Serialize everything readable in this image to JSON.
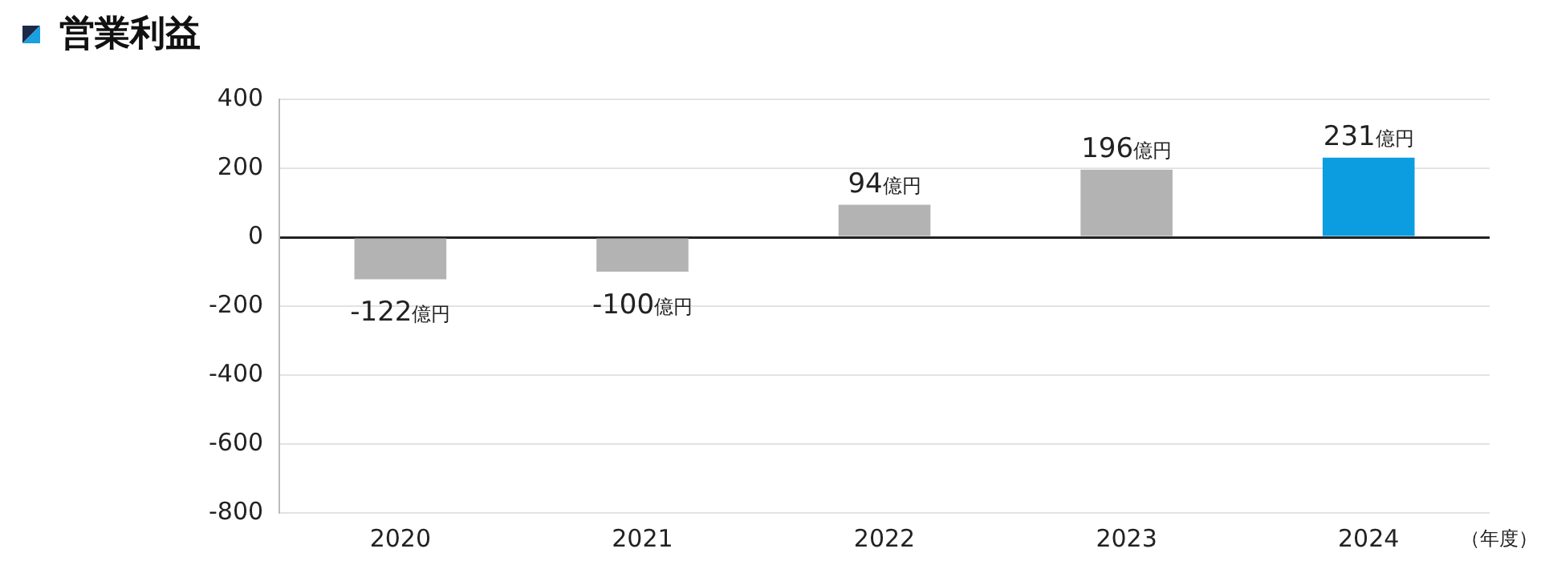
{
  "chart_data": {
    "type": "bar",
    "title": "営業利益",
    "xlabel": "（年度）",
    "categories": [
      "2020",
      "2021",
      "2022",
      "2023",
      "2024"
    ],
    "values": [
      -122,
      -100,
      94,
      196,
      231
    ],
    "colors": [
      "#b3b3b3",
      "#b3b3b3",
      "#b3b3b3",
      "#b3b3b3",
      "#0b9de0"
    ],
    "value_labels": [
      "-122億円",
      "-100億円",
      "94億円",
      "196億円",
      "231億円"
    ],
    "ylim": [
      -800,
      400
    ],
    "yticks": [
      -800,
      -600,
      -400,
      -200,
      0,
      200,
      400
    ],
    "grid": "y",
    "legend": false
  }
}
